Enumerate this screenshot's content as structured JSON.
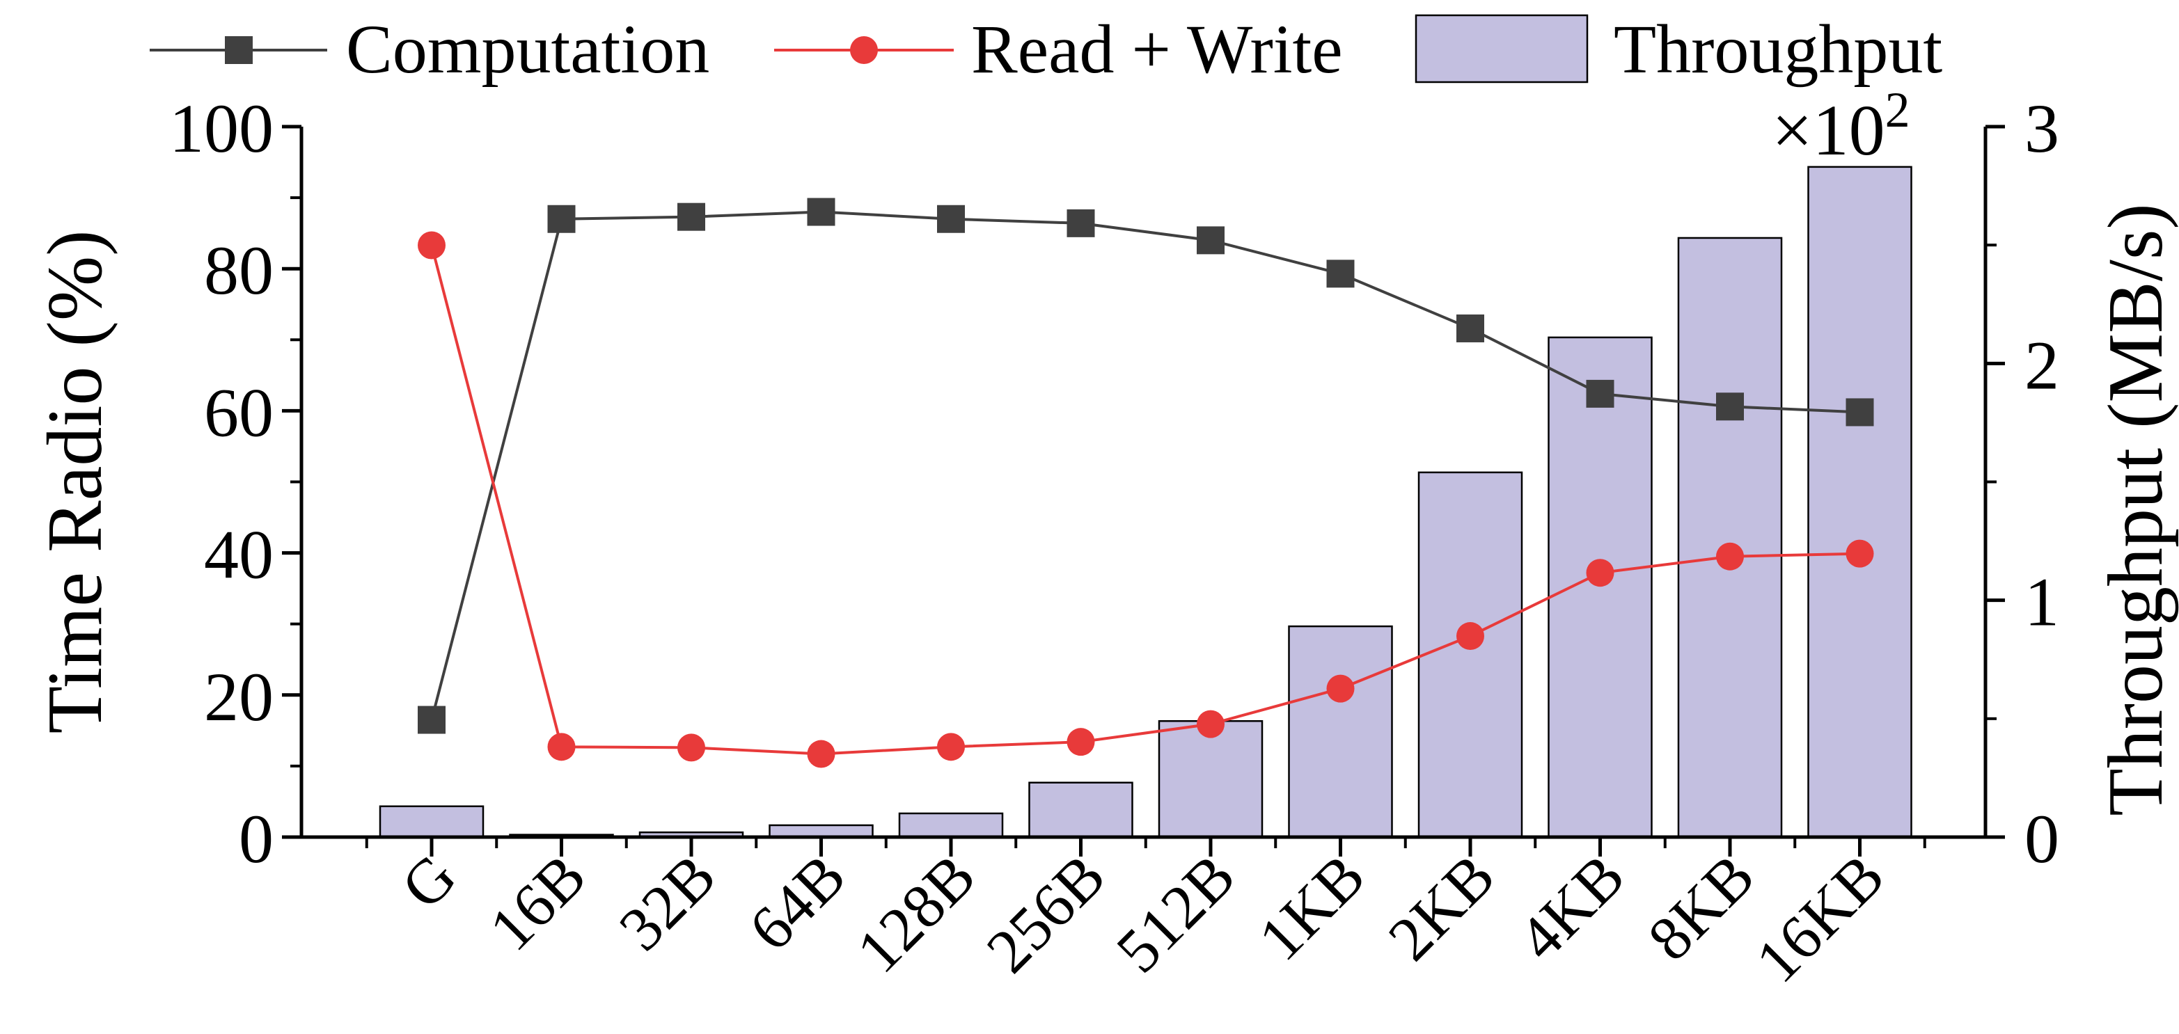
{
  "chart_data": {
    "type": "bar+line",
    "categories": [
      "G",
      "16B",
      "32B",
      "64B",
      "128B",
      "256B",
      "512B",
      "1KB",
      "2KB",
      "4KB",
      "8KB",
      "16KB"
    ],
    "series": [
      {
        "name": "Computation",
        "type": "line",
        "axis": "left",
        "marker": "square",
        "color": "#404040",
        "values": [
          16.5,
          87.0,
          87.3,
          88.0,
          87.0,
          86.4,
          84.0,
          79.3,
          71.6,
          62.4,
          60.6,
          59.8
        ]
      },
      {
        "name": "Read + Write",
        "type": "line",
        "axis": "left",
        "marker": "circle",
        "color": "#e83a3a",
        "values": [
          83.3,
          12.7,
          12.6,
          11.7,
          12.7,
          13.4,
          15.9,
          20.9,
          28.3,
          37.2,
          39.5,
          39.9
        ]
      },
      {
        "name": "Throughput",
        "type": "bar",
        "axis": "right",
        "color": "#c3bfe0",
        "values": [
          0.13,
          0.01,
          0.02,
          0.05,
          0.1,
          0.23,
          0.49,
          0.89,
          1.54,
          2.11,
          2.53,
          2.83
        ]
      }
    ],
    "y_left": {
      "label": "Time Radio (%)",
      "range": [
        0,
        100
      ],
      "ticks": [
        "0",
        "20",
        "40",
        "60",
        "80",
        "100"
      ]
    },
    "y_right": {
      "label": "Throughput (MB/s)",
      "range": [
        0,
        3
      ],
      "ticks": [
        "0",
        "1",
        "2",
        "3"
      ],
      "multiplier_base": "×10",
      "multiplier_exp": "2"
    },
    "legend": {
      "placement": "top",
      "items": [
        "Computation",
        "Read + Write",
        "Throughput"
      ]
    },
    "grid": false
  }
}
